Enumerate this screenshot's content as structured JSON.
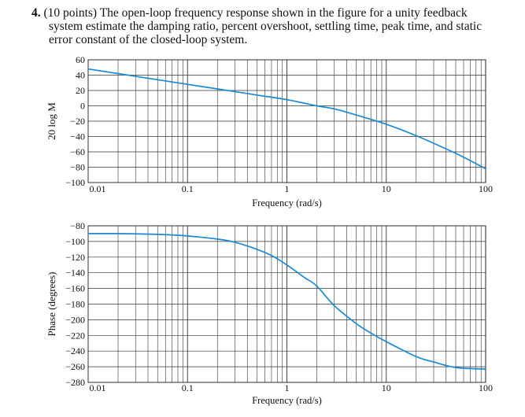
{
  "question": {
    "number": "4.",
    "line1": "(10 points) The open-loop frequency response shown in the figure for a unity feedback",
    "line2": "system estimate the damping ratio, percent overshoot, settling time, peak time, and static",
    "line3": "error constant of the closed-loop system."
  },
  "chart_data": [
    {
      "type": "line",
      "title": "",
      "xlabel": "Frequency (rad/s)",
      "ylabel": "20 log M",
      "xscale": "log",
      "xlim": [
        0.01,
        100
      ],
      "ylim": [
        -100,
        60
      ],
      "x_ticks": [
        "0.01",
        "0.1",
        "1",
        "10",
        "100"
      ],
      "y_ticks": [
        "60",
        "40",
        "20",
        "0",
        "−20",
        "−40",
        "−60",
        "−80",
        "−100"
      ],
      "grid": true,
      "series": [
        {
          "color": "#1a8ad4",
          "x": [
            0.01,
            0.02,
            0.05,
            0.1,
            0.2,
            0.5,
            1,
            2,
            3,
            5,
            10,
            20,
            50,
            100
          ],
          "y": [
            48,
            42,
            34,
            28,
            22,
            14,
            8,
            0,
            -4,
            -12,
            -24,
            -39,
            -62,
            -82
          ]
        }
      ]
    },
    {
      "type": "line",
      "title": "",
      "xlabel": "Frequency (rad/s)",
      "ylabel": "Phase (degrees)",
      "xscale": "log",
      "xlim": [
        0.01,
        100
      ],
      "ylim": [
        -280,
        -80
      ],
      "x_ticks": [
        "0.01",
        "0.1",
        "1",
        "10",
        "100"
      ],
      "y_ticks": [
        "−80",
        "−100",
        "−120",
        "−140",
        "−160",
        "−180",
        "−200",
        "−220",
        "−240",
        "−260",
        "−280"
      ],
      "grid": true,
      "series": [
        {
          "color": "#1a8ad4",
          "x": [
            0.01,
            0.02,
            0.05,
            0.1,
            0.2,
            0.3,
            0.5,
            0.7,
            1,
            1.5,
            2,
            3,
            5,
            7,
            10,
            20,
            30,
            50,
            100
          ],
          "y": [
            -90,
            -90,
            -91,
            -93,
            -97,
            -101,
            -110,
            -118,
            -130,
            -146,
            -157,
            -182,
            -205,
            -217,
            -228,
            -247,
            -254,
            -261,
            -263
          ]
        }
      ]
    }
  ]
}
